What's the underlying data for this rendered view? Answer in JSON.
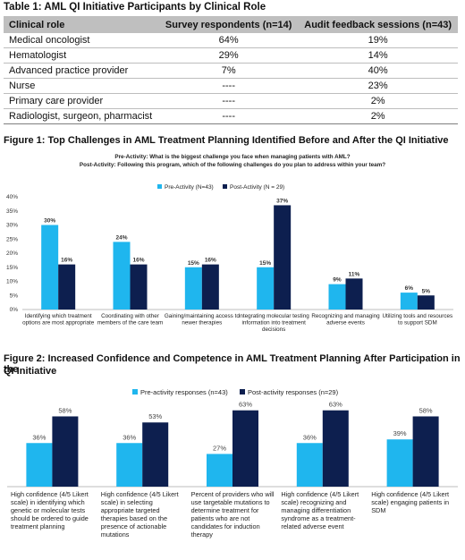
{
  "table1": {
    "title": "Table 1: AML QI Initiative Participants by Clinical Role",
    "headers": [
      "Clinical role",
      "Survey respondents (n=14)",
      "Audit feedback sessions (n=43)"
    ],
    "rows": [
      [
        "Medical oncologist",
        "64%",
        "19%"
      ],
      [
        "Hematologist",
        "29%",
        "14%"
      ],
      [
        "Advanced practice provider",
        "7%",
        "40%"
      ],
      [
        "Nurse",
        "----",
        "23%"
      ],
      [
        "Primary care provider",
        "----",
        "2%"
      ],
      [
        "Radiologist, surgeon, pharmacist",
        "----",
        "2%"
      ]
    ]
  },
  "colors": {
    "pre": "#1fb6ee",
    "post": "#0d1f4f",
    "header": "#bfbfbf"
  },
  "chart_data": [
    {
      "type": "bar",
      "title": "Figure 1: Top Challenges in AML Treatment Planning Identified Before and After the QI Initiative",
      "subtitle_lines": [
        "Pre-Activity: What is the biggest challenge you face when managing patients with AML?",
        "Post-Activity: Following this program, which of the following challenges do you plan to address within your team?"
      ],
      "categories": [
        [
          "Identifying which treatment",
          "options are most appropriate"
        ],
        [
          "Coordinating with other",
          "members of the care team"
        ],
        [
          "Gaining/maintaining access to",
          "newer therapies"
        ],
        [
          "Integrating molecular testing",
          "information into treatment",
          "decisions"
        ],
        [
          "Recognizing and managing",
          "adverse events"
        ],
        [
          "Utilizing tools and resources",
          "to support SDM"
        ]
      ],
      "series": [
        {
          "name": "Pre-Activity (N=43)",
          "values": [
            30,
            24,
            15,
            15,
            9,
            6
          ],
          "labels": [
            "30%",
            "24%",
            "15%",
            "15%",
            "9%",
            "6%"
          ]
        },
        {
          "name": "Post-Activity (N = 29)",
          "values": [
            16,
            16,
            16,
            37,
            11,
            5
          ],
          "labels": [
            "16%",
            "16%",
            "16%",
            "37%",
            "11%",
            "5%"
          ]
        }
      ],
      "ylim": [
        0,
        40
      ],
      "yticks": [
        "0%",
        "5%",
        "10%",
        "15%",
        "20%",
        "25%",
        "30%",
        "35%",
        "40%"
      ],
      "legend": "top",
      "grid": false
    },
    {
      "type": "bar",
      "title_lines": [
        "Figure 2: Increased Confidence and Competence in AML Treatment Planning After Participation in the",
        "QI Initiative"
      ],
      "categories": [
        [
          "High confidence (4/5 Likert",
          "scale) in identifying which",
          "genetic or molecular tests",
          "should be ordered to guide",
          "treatment planning"
        ],
        [
          "High confidence (4/5 Likert",
          "scale) in selecting",
          "appropriate targeted",
          "therapies based on the",
          "presence of actionable",
          "mutations"
        ],
        [
          "Percent of providers who will",
          "use targetable mutations to",
          "determine treatment for",
          "patients who are not",
          "candidates for induction",
          "therapy"
        ],
        [
          "High confidence (4/5 Likert",
          "scale) recognizing and",
          "managing differentiation",
          "syndrome as a treatment-",
          "related adverse event"
        ],
        [
          "High confidence (4/5 Likert",
          "scale) engaging patients in",
          "SDM"
        ]
      ],
      "series": [
        {
          "name": "Pre-activity responses (n=43)",
          "values": [
            36,
            36,
            27,
            36,
            39
          ],
          "labels": [
            "36%",
            "36%",
            "27%",
            "36%",
            "39%"
          ]
        },
        {
          "name": "Post-activity responses (n=29)",
          "values": [
            58,
            53,
            63,
            63,
            58
          ],
          "labels": [
            "58%",
            "53%",
            "63%",
            "63%",
            "58%"
          ]
        }
      ],
      "ylim": [
        0,
        65
      ],
      "legend": "top",
      "grid": false
    }
  ]
}
